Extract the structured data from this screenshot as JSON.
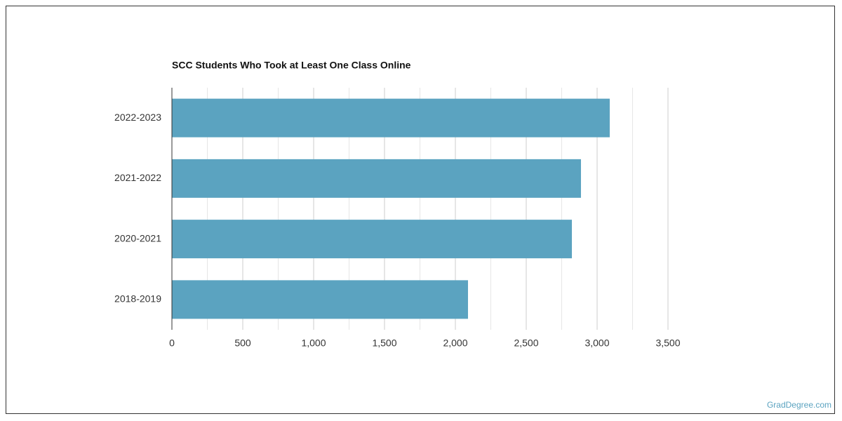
{
  "chart_data": {
    "type": "bar",
    "orientation": "horizontal",
    "title": "SCC Students Who Took at Least One Class Online",
    "categories": [
      "2022-2023",
      "2021-2022",
      "2020-2021",
      "2018-2019"
    ],
    "values": [
      3089,
      2886,
      2822,
      2089
    ],
    "color": "#5ba3c0",
    "xlim": [
      0,
      3500
    ],
    "xticks": [
      0,
      500,
      {
        "value": 1000,
        "label": "1,000"
      },
      {
        "value": 1500,
        "label": "1,500"
      },
      {
        "value": 2000,
        "label": "2,000"
      },
      {
        "value": 2500,
        "label": "2,500"
      },
      {
        "value": 3000,
        "label": "3,000"
      },
      {
        "value": 3500,
        "label": "3,500"
      }
    ],
    "minor_xticks": [
      250,
      750,
      1250,
      1750,
      2250,
      2750,
      3250
    ],
    "grid": true
  },
  "footer": {
    "source": "GradDegree.com"
  }
}
